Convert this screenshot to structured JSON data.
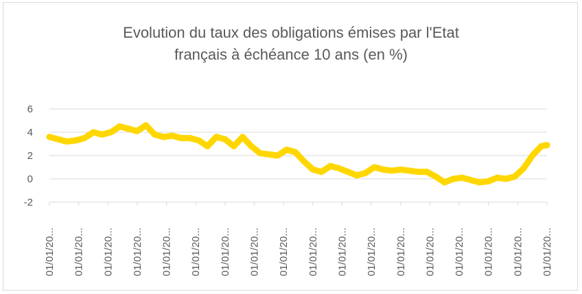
{
  "chart_data": {
    "type": "line",
    "title_lines": [
      "Evolution du taux des obligations émises par l'Etat",
      "français à échéance 10 ans (en %)"
    ],
    "xlabel": "",
    "ylabel": "",
    "ylim": [
      -2,
      6
    ],
    "yticks": [
      "6",
      "4",
      "2",
      "0",
      "-2"
    ],
    "x_tick_labels": [
      "01/01/20...",
      "01/01/20...",
      "01/01/20...",
      "01/01/20...",
      "01/01/20...",
      "01/01/20...",
      "01/01/20...",
      "01/01/20...",
      "01/01/20...",
      "01/01/20...",
      "01/01/20...",
      "01/01/20...",
      "01/01/20...",
      "01/01/20...",
      "01/01/20...",
      "01/01/20...",
      "01/01/20...",
      "01/01/20..."
    ],
    "grid": true,
    "legend": "none",
    "series_color": "#FFD700",
    "x_index_range": [
      0,
      17
    ],
    "series": [
      {
        "x": [
          0,
          0.3,
          0.6,
          0.9,
          1.2,
          1.5,
          1.8,
          2.1,
          2.4,
          2.7,
          3.0,
          3.3,
          3.6,
          3.9,
          4.2,
          4.5,
          4.8,
          5.1,
          5.4,
          5.7,
          6.0,
          6.3,
          6.6,
          6.9,
          7.2,
          7.5,
          7.8,
          8.1,
          8.4,
          8.7,
          9.0,
          9.3,
          9.6,
          9.9,
          10.2,
          10.5,
          10.8,
          11.1,
          11.4,
          11.7,
          12.0,
          12.3,
          12.6,
          12.9,
          13.2,
          13.5,
          13.8,
          14.1,
          14.4,
          14.7,
          15.0,
          15.3,
          15.6,
          15.9,
          16.2,
          16.5,
          16.8,
          17.0
        ],
        "values": [
          3.6,
          3.4,
          3.2,
          3.3,
          3.5,
          4.0,
          3.8,
          4.0,
          4.5,
          4.3,
          4.1,
          4.6,
          3.8,
          3.6,
          3.7,
          3.5,
          3.5,
          3.3,
          2.8,
          3.6,
          3.4,
          2.8,
          3.6,
          2.8,
          2.2,
          2.1,
          2.0,
          2.5,
          2.3,
          1.5,
          0.8,
          0.6,
          1.1,
          0.9,
          0.6,
          0.3,
          0.5,
          1.0,
          0.8,
          0.7,
          0.8,
          0.7,
          0.6,
          0.6,
          0.2,
          -0.3,
          0.0,
          0.1,
          -0.1,
          -0.3,
          -0.2,
          0.1,
          0.0,
          0.2,
          0.9,
          2.0,
          2.8,
          2.9
        ]
      }
    ]
  }
}
